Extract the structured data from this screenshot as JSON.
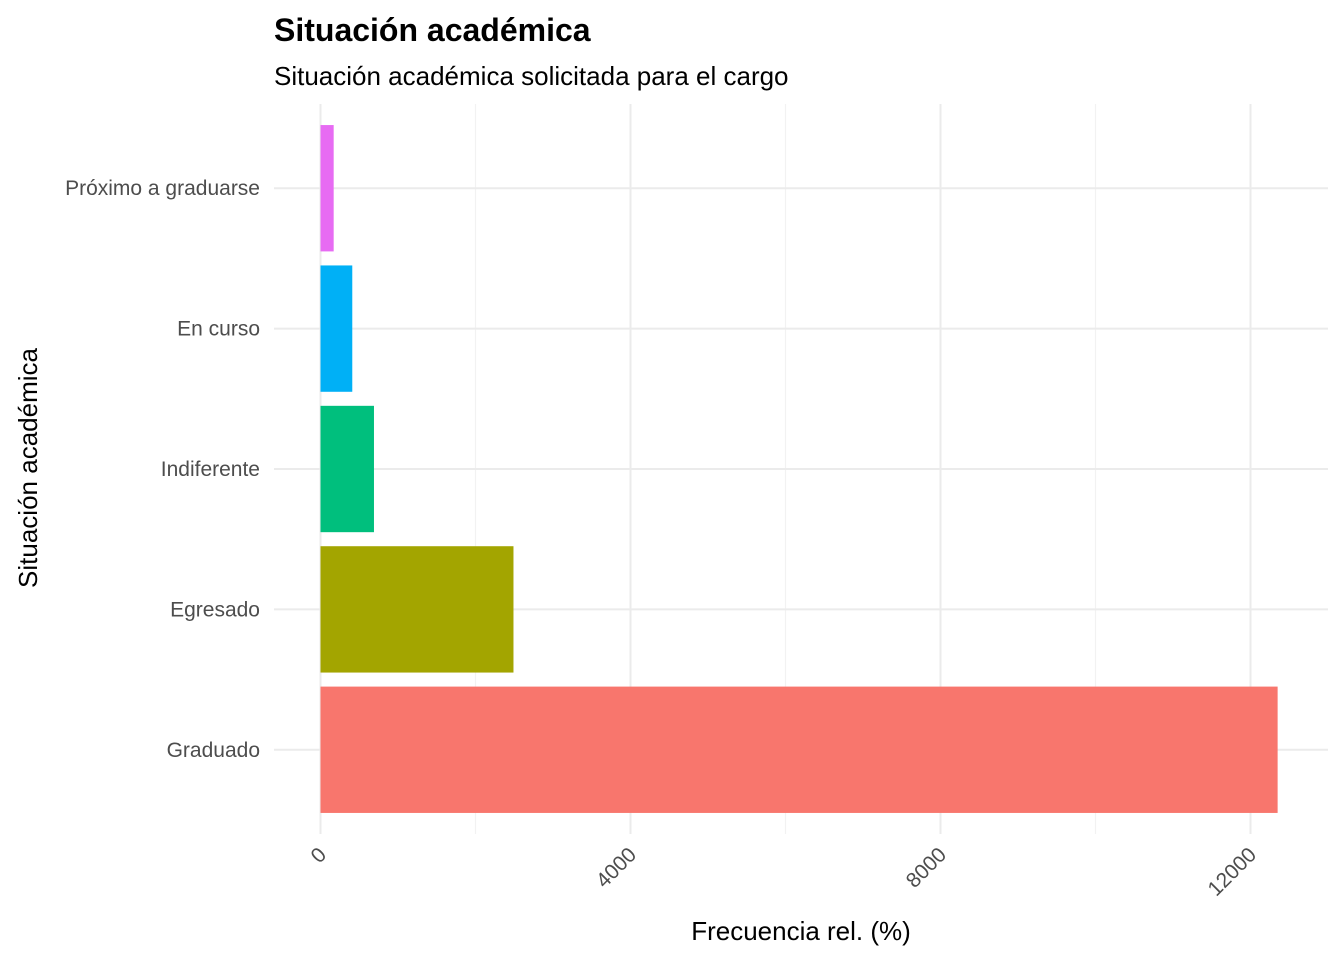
{
  "chart_data": {
    "type": "bar",
    "orientation": "horizontal",
    "title": "Situación académica",
    "subtitle": "Situación académica solicitada para el cargo",
    "xlabel": "Frecuencia rel. (%)",
    "ylabel": "Situación académica",
    "categories": [
      "Graduado",
      "Egresado",
      "Indiferente",
      "En curso",
      "Próximo a graduarse"
    ],
    "values": [
      12350,
      2490,
      690,
      410,
      170
    ],
    "colors": [
      "#F8766D",
      "#A3A500",
      "#00BF7D",
      "#00B0F6",
      "#E76BF3"
    ],
    "xlim": [
      -600,
      13000
    ],
    "xticks": [
      0,
      4000,
      8000,
      12000
    ],
    "xtick_labels": [
      "0",
      "4000",
      "8000",
      "12000"
    ],
    "xtick_rotation": -45,
    "grid": true,
    "legend": "none"
  }
}
